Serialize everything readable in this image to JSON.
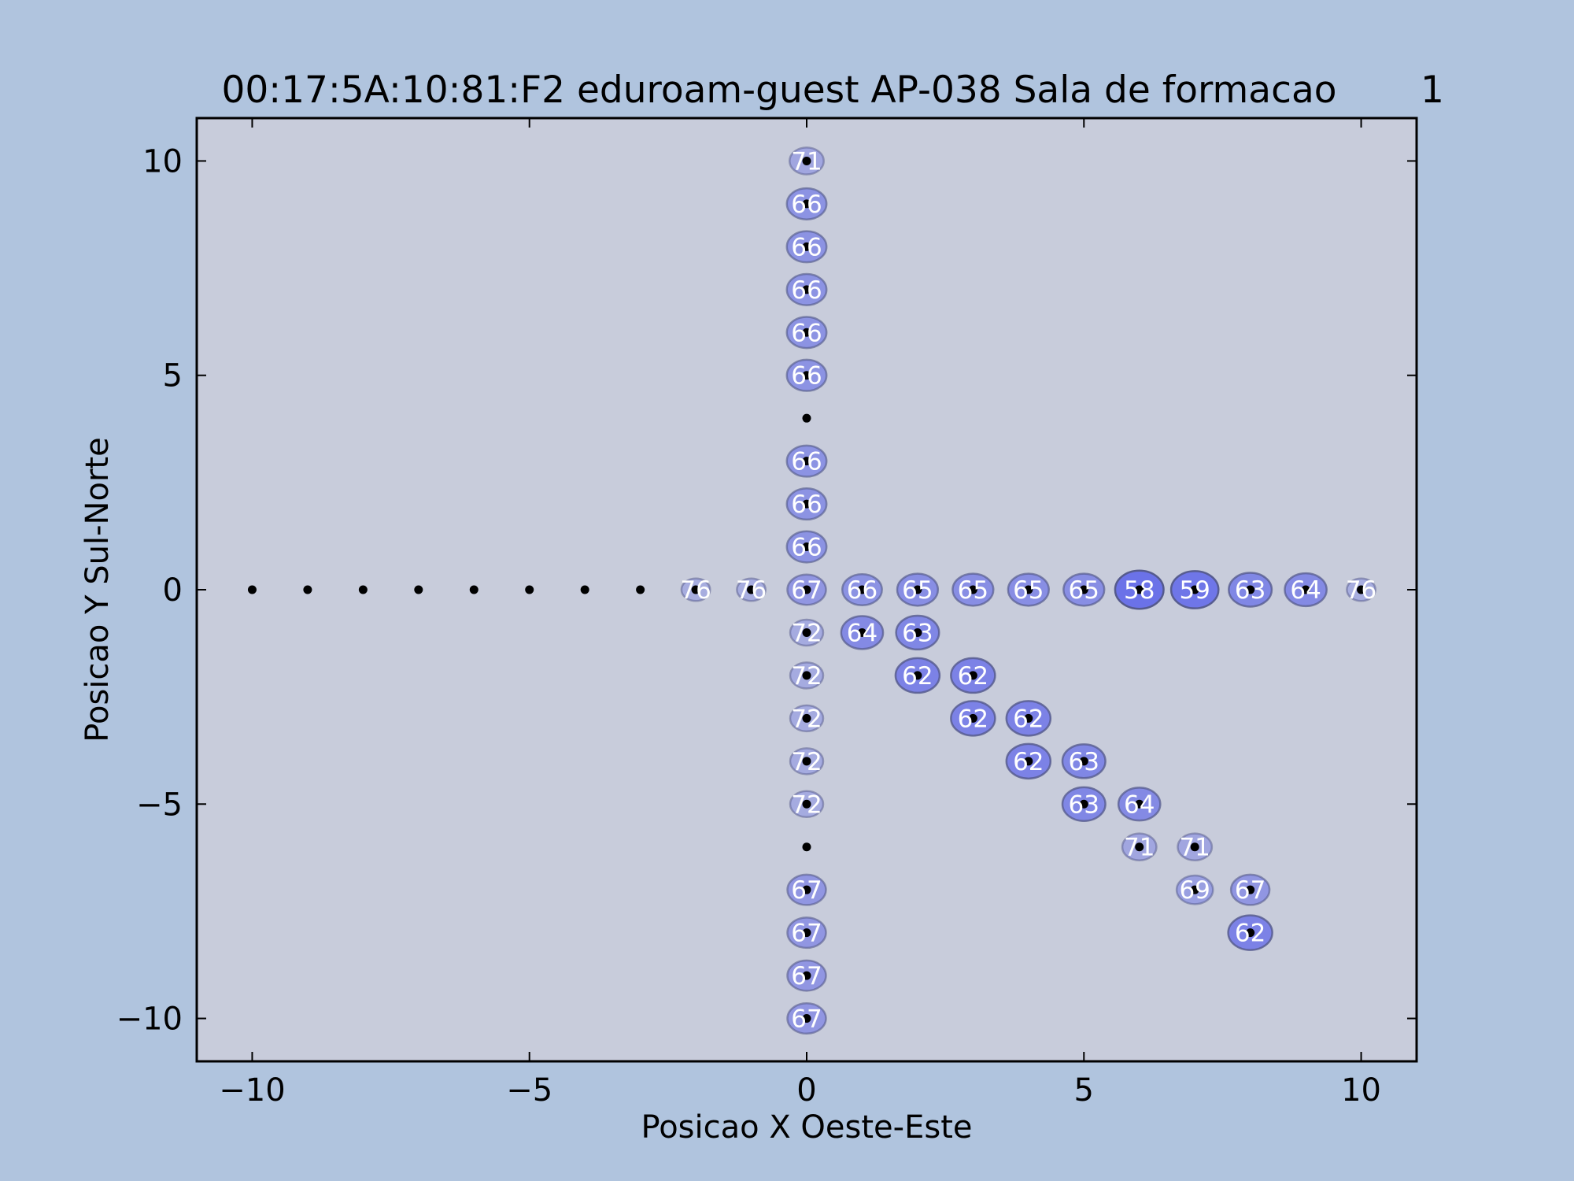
{
  "chart_data": {
    "type": "scatter",
    "title": "00:17:5A:10:81:F2 eduroam-guest AP-038 Sala de formacao",
    "title_suffix": "1",
    "xlabel": "Posicao X Oeste-Este",
    "ylabel": "Posicao Y Sul-Norte",
    "xlim": [
      -11,
      11
    ],
    "ylim": [
      -11,
      11
    ],
    "xticks": [
      -10,
      -5,
      0,
      5,
      10
    ],
    "yticks": [
      -10,
      -5,
      0,
      5,
      10
    ],
    "xtick_labels": [
      "−10",
      "−5",
      "0",
      "5",
      "10"
    ],
    "ytick_labels": [
      "−10",
      "−5",
      "0",
      "5",
      "10"
    ],
    "colors": {
      "figure_background": "#b0c4de",
      "axes_background": "#c8ccdb",
      "marker_fill": "#6b72e8",
      "marker_edge": "#555a8c",
      "label_text": "#ffffff",
      "dot": "#000000"
    },
    "measurement_points": [
      [
        -10,
        0
      ],
      [
        -9,
        0
      ],
      [
        -8,
        0
      ],
      [
        -7,
        0
      ],
      [
        -6,
        0
      ],
      [
        -5,
        0
      ],
      [
        -4,
        0
      ],
      [
        -3,
        0
      ],
      [
        -2,
        0
      ],
      [
        -1,
        0
      ],
      [
        0,
        0
      ],
      [
        1,
        0
      ],
      [
        2,
        0
      ],
      [
        3,
        0
      ],
      [
        4,
        0
      ],
      [
        5,
        0
      ],
      [
        6,
        0
      ],
      [
        7,
        0
      ],
      [
        8,
        0
      ],
      [
        9,
        0
      ],
      [
        10,
        0
      ],
      [
        0,
        10
      ],
      [
        0,
        9
      ],
      [
        0,
        8
      ],
      [
        0,
        7
      ],
      [
        0,
        6
      ],
      [
        0,
        5
      ],
      [
        0,
        4
      ],
      [
        0,
        3
      ],
      [
        0,
        2
      ],
      [
        0,
        1
      ],
      [
        0,
        -1
      ],
      [
        0,
        -2
      ],
      [
        0,
        -3
      ],
      [
        0,
        -4
      ],
      [
        0,
        -5
      ],
      [
        0,
        -6
      ],
      [
        0,
        -7
      ],
      [
        0,
        -8
      ],
      [
        0,
        -9
      ],
      [
        0,
        -10
      ],
      [
        1,
        -1
      ],
      [
        2,
        -1
      ],
      [
        2,
        -2
      ],
      [
        3,
        -2
      ],
      [
        3,
        -3
      ],
      [
        4,
        -3
      ],
      [
        4,
        -4
      ],
      [
        5,
        -4
      ],
      [
        5,
        -5
      ],
      [
        6,
        -5
      ],
      [
        6,
        -6
      ],
      [
        7,
        -6
      ],
      [
        7,
        -7
      ],
      [
        8,
        -7
      ],
      [
        8,
        -8
      ]
    ],
    "signal_readings": [
      {
        "x": 0,
        "y": 10,
        "value": 71
      },
      {
        "x": 0,
        "y": 9,
        "value": 66
      },
      {
        "x": 0,
        "y": 8,
        "value": 66
      },
      {
        "x": 0,
        "y": 7,
        "value": 66
      },
      {
        "x": 0,
        "y": 6,
        "value": 66
      },
      {
        "x": 0,
        "y": 5,
        "value": 66
      },
      {
        "x": 0,
        "y": 3,
        "value": 66
      },
      {
        "x": 0,
        "y": 2,
        "value": 66
      },
      {
        "x": 0,
        "y": 1,
        "value": 66
      },
      {
        "x": -2,
        "y": 0,
        "value": 76
      },
      {
        "x": -1,
        "y": 0,
        "value": 76
      },
      {
        "x": 0,
        "y": 0,
        "value": 67
      },
      {
        "x": 1,
        "y": 0,
        "value": 66
      },
      {
        "x": 2,
        "y": 0,
        "value": 65
      },
      {
        "x": 3,
        "y": 0,
        "value": 65
      },
      {
        "x": 4,
        "y": 0,
        "value": 65
      },
      {
        "x": 5,
        "y": 0,
        "value": 65
      },
      {
        "x": 6,
        "y": 0,
        "value": 58
      },
      {
        "x": 7,
        "y": 0,
        "value": 59
      },
      {
        "x": 8,
        "y": 0,
        "value": 63
      },
      {
        "x": 9,
        "y": 0,
        "value": 64
      },
      {
        "x": 10,
        "y": 0,
        "value": 76
      },
      {
        "x": 0,
        "y": -1,
        "value": 72
      },
      {
        "x": 0,
        "y": -2,
        "value": 72
      },
      {
        "x": 0,
        "y": -3,
        "value": 72
      },
      {
        "x": 0,
        "y": -4,
        "value": 72
      },
      {
        "x": 0,
        "y": -5,
        "value": 72
      },
      {
        "x": 0,
        "y": -7,
        "value": 67
      },
      {
        "x": 0,
        "y": -8,
        "value": 67
      },
      {
        "x": 0,
        "y": -9,
        "value": 67
      },
      {
        "x": 0,
        "y": -10,
        "value": 67
      },
      {
        "x": 1,
        "y": -1,
        "value": 64
      },
      {
        "x": 2,
        "y": -1,
        "value": 63
      },
      {
        "x": 2,
        "y": -2,
        "value": 62
      },
      {
        "x": 3,
        "y": -2,
        "value": 62
      },
      {
        "x": 3,
        "y": -3,
        "value": 62
      },
      {
        "x": 4,
        "y": -3,
        "value": 62
      },
      {
        "x": 4,
        "y": -4,
        "value": 62
      },
      {
        "x": 5,
        "y": -4,
        "value": 63
      },
      {
        "x": 5,
        "y": -5,
        "value": 63
      },
      {
        "x": 6,
        "y": -5,
        "value": 64
      },
      {
        "x": 6,
        "y": -6,
        "value": 71
      },
      {
        "x": 7,
        "y": -6,
        "value": 71
      },
      {
        "x": 7,
        "y": -7,
        "value": 69
      },
      {
        "x": 8,
        "y": -7,
        "value": 67
      },
      {
        "x": 8,
        "y": -8,
        "value": 62
      }
    ]
  }
}
